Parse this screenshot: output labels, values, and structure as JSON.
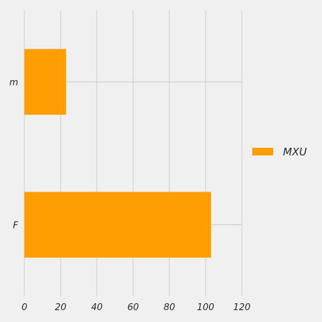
{
  "chart_data": {
    "type": "bar",
    "orientation": "horizontal",
    "categories": [
      "m",
      "F"
    ],
    "series": [
      {
        "name": "MXU",
        "values": [
          23,
          103
        ],
        "color": "#ff9e00"
      }
    ],
    "xlim": [
      0,
      120
    ],
    "xticks": [
      "0",
      "20",
      "40",
      "60",
      "80",
      "100",
      "120"
    ],
    "grid": true,
    "legend_position": "right",
    "background_color": "#f0f0f0",
    "grid_color": "#cbcbcb"
  }
}
